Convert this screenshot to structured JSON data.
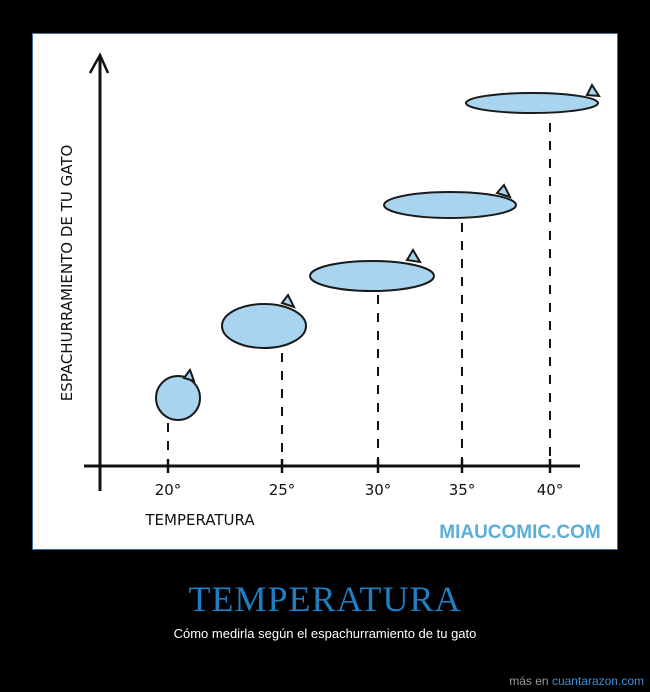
{
  "comic": {
    "y_axis_label": "ESPACHURRAMIENTO DE TU GATO",
    "x_axis_label": "TEMPERATURA",
    "ticks": [
      "20°",
      "25°",
      "30°",
      "35°",
      "40°"
    ],
    "credit": "MIAUCOMIC.COM"
  },
  "title": "TEMPERATURA",
  "caption": "Cómo medirla según el espachurramiento de tu gato",
  "footer": {
    "prefix": "más en",
    "link": "cuantarazon.com"
  }
}
